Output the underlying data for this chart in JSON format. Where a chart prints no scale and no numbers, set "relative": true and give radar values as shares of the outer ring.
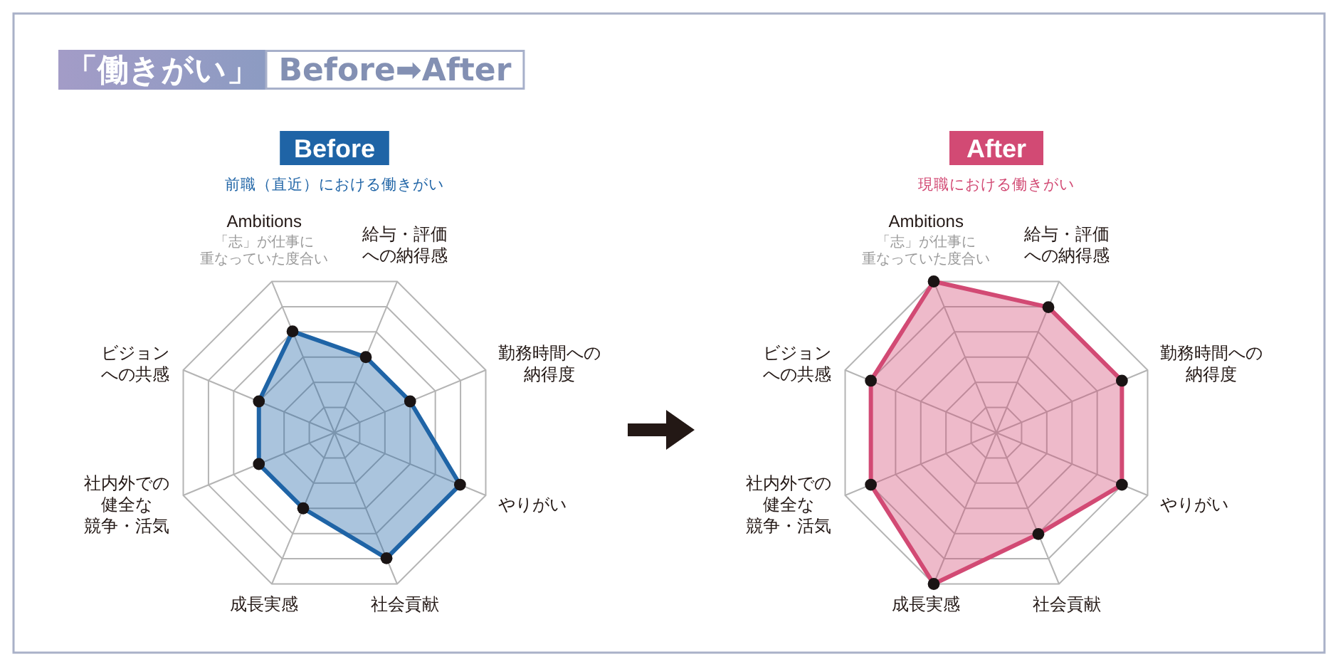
{
  "chart_data": [
    {
      "type": "other",
      "title": "「働きがい」",
      "subtitle": "Before➡After"
    },
    {
      "type": "radar",
      "title": "Before",
      "subtitle": "前職（直近）における働きがい",
      "categories": [
        "Ambitions",
        "給与・評価への納得感",
        "勤務時間への納得度",
        "やりがい",
        "社会貢献",
        "成長実感",
        "社内外での健全な競争・活気",
        "ビジョンへの共感"
      ],
      "annotations": [
        "「志」が仕事に重なっていた度合い"
      ],
      "relative": true,
      "grid": true,
      "marker": "circle",
      "series": [
        {
          "color": "#1f64a6",
          "values": [
            0.67,
            0.5,
            0.5,
            0.83,
            0.83,
            0.5,
            0.5,
            0.5
          ]
        }
      ]
    },
    {
      "type": "radar",
      "title": "After",
      "subtitle": "現職における働きがい",
      "categories": [
        "Ambitions",
        "給与・評価への納得感",
        "勤務時間への納得度",
        "やりがい",
        "社会貢献",
        "成長実感",
        "社内外での健全な競争・活気",
        "ビジョンへの共感"
      ],
      "annotations": [
        "「志」が仕事に重なっていた度合い"
      ],
      "relative": true,
      "grid": true,
      "marker": "circle",
      "series": [
        {
          "color": "#d24a74",
          "values": [
            1,
            0.83,
            0.83,
            0.83,
            0.67,
            1,
            0.83,
            0.83
          ]
        }
      ]
    }
  ]
}
